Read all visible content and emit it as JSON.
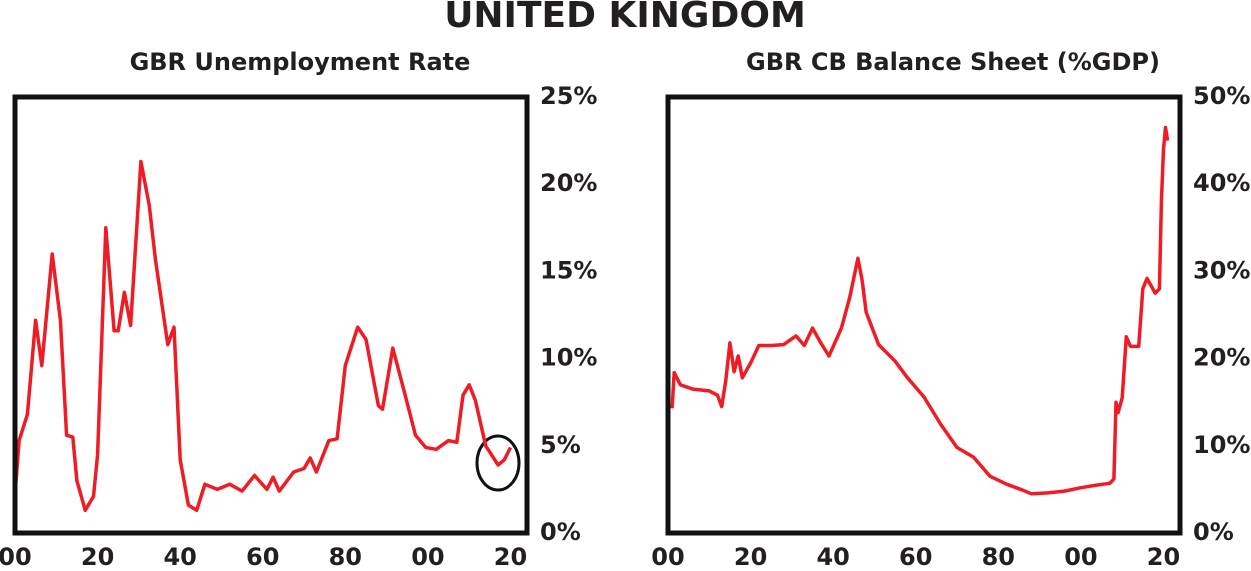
{
  "title": "UNITED KINGDOM",
  "chart_data": [
    {
      "type": "line",
      "title": "GBR Unemployment Rate",
      "color": "#ee1c25",
      "x": [
        1900,
        1901,
        1903,
        1905,
        1906.5,
        1909,
        1911,
        1912.5,
        1914,
        1915,
        1917,
        1919,
        1920,
        1922,
        1924,
        1925,
        1926.5,
        1928,
        1930.5,
        1932.5,
        1934,
        1937,
        1938.5,
        1940,
        1942,
        1944,
        1946,
        1949,
        1952,
        1955,
        1958,
        1961,
        1962.5,
        1964,
        1967.5,
        1970,
        1971.5,
        1973,
        1976,
        1978,
        1980,
        1983,
        1985,
        1988,
        1989,
        1991.5,
        1994.5,
        1997,
        1999.5,
        2002,
        2005,
        2007,
        2008.5,
        2010,
        2011.5,
        2014,
        2017,
        2018.5,
        2020
      ],
      "values": [
        2.2,
        5.3,
        6.8,
        12.2,
        9.6,
        16,
        12.2,
        5.6,
        5.5,
        3.0,
        1.3,
        2.1,
        4.5,
        17.5,
        11.6,
        11.6,
        13.8,
        11.9,
        21.3,
        18.8,
        15.7,
        10.8,
        11.8,
        4.2,
        1.6,
        1.3,
        2.8,
        2.5,
        2.8,
        2.4,
        3.3,
        2.5,
        3.2,
        2.4,
        3.5,
        3.7,
        4.3,
        3.5,
        5.3,
        5.4,
        9.6,
        11.8,
        11.1,
        7.3,
        7.1,
        10.6,
        7.9,
        5.6,
        4.9,
        4.8,
        5.3,
        5.2,
        7.9,
        8.5,
        7.6,
        5.0,
        3.9,
        4.2,
        4.9
      ],
      "xlim": [
        1900,
        2024
      ],
      "xticks": [
        {
          "value": 1900,
          "label": "00"
        },
        {
          "value": 1920,
          "label": "20"
        },
        {
          "value": 1940,
          "label": "40"
        },
        {
          "value": 1960,
          "label": "60"
        },
        {
          "value": 1980,
          "label": "80"
        },
        {
          "value": 2000,
          "label": "00"
        },
        {
          "value": 2020,
          "label": "20"
        }
      ],
      "ylim": [
        0,
        25
      ],
      "yticks": [
        {
          "value": 0,
          "label": "0%"
        },
        {
          "value": 5,
          "label": "5%"
        },
        {
          "value": 10,
          "label": "10%"
        },
        {
          "value": 15,
          "label": "15%"
        },
        {
          "value": 20,
          "label": "20%"
        },
        {
          "value": 25,
          "label": "25%"
        }
      ]
    },
    {
      "type": "line",
      "title": "GBR CB Balance Sheet (%GDP)",
      "color": "#ee1c25",
      "x": [
        1901,
        1901.5,
        1903,
        1906,
        1910,
        1912,
        1913,
        1914,
        1915,
        1916,
        1917,
        1918,
        1920,
        1922,
        1925,
        1928,
        1931,
        1933,
        1935,
        1937,
        1939,
        1942,
        1944,
        1946,
        1947,
        1948,
        1951,
        1955,
        1958,
        1962,
        1966,
        1970,
        1974,
        1978,
        1982,
        1986,
        1988,
        1992,
        1996,
        2000,
        2004,
        2007,
        2008,
        2008.5,
        2009,
        2010,
        2011,
        2012,
        2014,
        2015,
        2016,
        2018,
        2019,
        2019.5,
        2020,
        2020.5,
        2021
      ],
      "values": [
        14.3,
        18.4,
        17,
        16.5,
        16.3,
        15.8,
        14.5,
        17.5,
        21.8,
        18.5,
        20.3,
        17.8,
        19.5,
        21.5,
        21.5,
        21.6,
        22.6,
        21.5,
        23.5,
        21.8,
        20.3,
        23.5,
        27,
        31.5,
        29,
        25.3,
        21.6,
        19.7,
        17.8,
        15.6,
        12.5,
        9.8,
        8.7,
        6.5,
        5.6,
        4.9,
        4.5,
        4.6,
        4.8,
        5.2,
        5.5,
        5.7,
        6.2,
        15,
        13.8,
        15.5,
        22.5,
        21.4,
        21.4,
        28.0,
        29.2,
        27.5,
        28,
        38,
        44,
        46.5,
        45
      ],
      "xlim": [
        1900,
        2024
      ],
      "xticks": [
        {
          "value": 1900,
          "label": "00"
        },
        {
          "value": 1920,
          "label": "20"
        },
        {
          "value": 1940,
          "label": "40"
        },
        {
          "value": 1960,
          "label": "60"
        },
        {
          "value": 1980,
          "label": "80"
        },
        {
          "value": 2000,
          "label": "00"
        },
        {
          "value": 2020,
          "label": "20"
        }
      ],
      "ylim": [
        0,
        50
      ],
      "yticks": [
        {
          "value": 0,
          "label": "0%"
        },
        {
          "value": 10,
          "label": "10%"
        },
        {
          "value": 20,
          "label": "20%"
        },
        {
          "value": 30,
          "label": "30%"
        },
        {
          "value": 40,
          "label": "40%"
        },
        {
          "value": 50,
          "label": "50%"
        }
      ]
    }
  ]
}
